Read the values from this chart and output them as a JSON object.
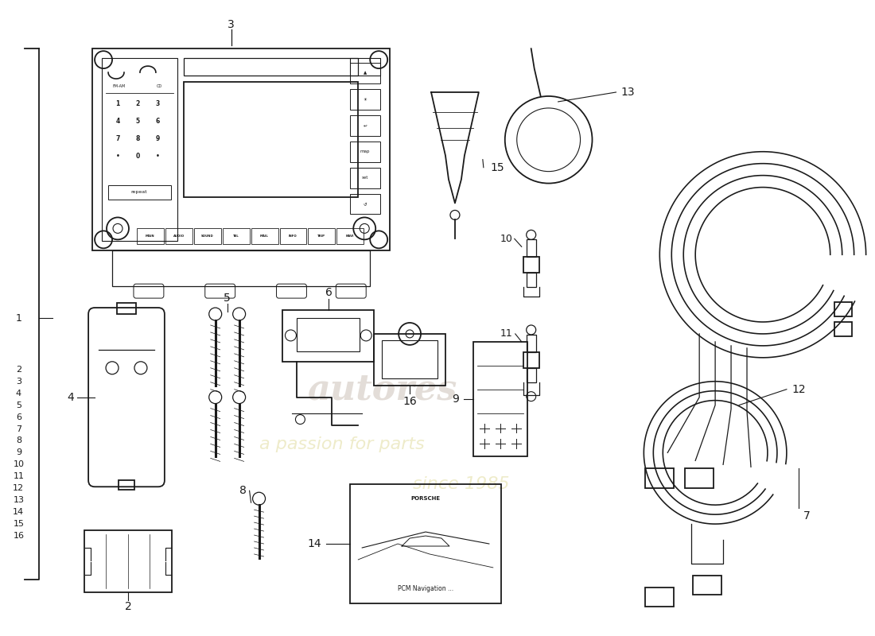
{
  "bg_color": "#ffffff",
  "line_color": "#1a1a1a",
  "watermark1": "autores",
  "watermark2": "a passion for parts",
  "watermark3": "since 1985"
}
